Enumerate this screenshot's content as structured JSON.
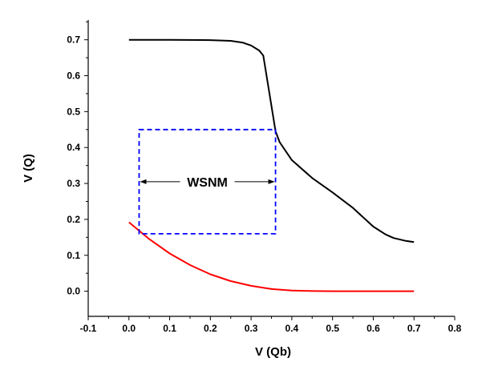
{
  "chart_data": {
    "type": "line",
    "title": "",
    "xlabel": "V (Qb)",
    "ylabel": "V (Q)",
    "xlim": [
      -0.1,
      0.8
    ],
    "ylim": [
      -0.07,
      0.755
    ],
    "xticks": [
      "-0.1",
      "0.0",
      "0.1",
      "0.2",
      "0.3",
      "0.4",
      "0.5",
      "0.6",
      "0.7",
      "0.8"
    ],
    "yticks": [
      "0.0",
      "0.1",
      "0.2",
      "0.3",
      "0.4",
      "0.5",
      "0.6",
      "0.7"
    ],
    "grid": false,
    "legend": "none",
    "series": [
      {
        "color": "#000000",
        "x": [
          0.0,
          0.1,
          0.2,
          0.25,
          0.28,
          0.3,
          0.32,
          0.33,
          0.345,
          0.36,
          0.37,
          0.4,
          0.45,
          0.5,
          0.55,
          0.6,
          0.63,
          0.65,
          0.68,
          0.7
        ],
        "y": [
          0.7,
          0.7,
          0.699,
          0.697,
          0.692,
          0.684,
          0.67,
          0.656,
          0.55,
          0.445,
          0.415,
          0.365,
          0.315,
          0.275,
          0.232,
          0.18,
          0.158,
          0.148,
          0.14,
          0.137
        ]
      },
      {
        "color": "#ff0000",
        "x": [
          0.0,
          0.05,
          0.1,
          0.15,
          0.2,
          0.25,
          0.3,
          0.35,
          0.4,
          0.45,
          0.5,
          0.6,
          0.7
        ],
        "y": [
          0.192,
          0.145,
          0.105,
          0.073,
          0.047,
          0.028,
          0.015,
          0.006,
          0.002,
          0.0005,
          0.0,
          0.0,
          0.0
        ]
      }
    ],
    "annotations": {
      "wsnm_label": "WSNM",
      "box_color": "#0000ff",
      "box": {
        "x0": 0.025,
        "x1": 0.36,
        "y0": 0.16,
        "y1": 0.45
      },
      "arrow_y": 0.305
    }
  }
}
